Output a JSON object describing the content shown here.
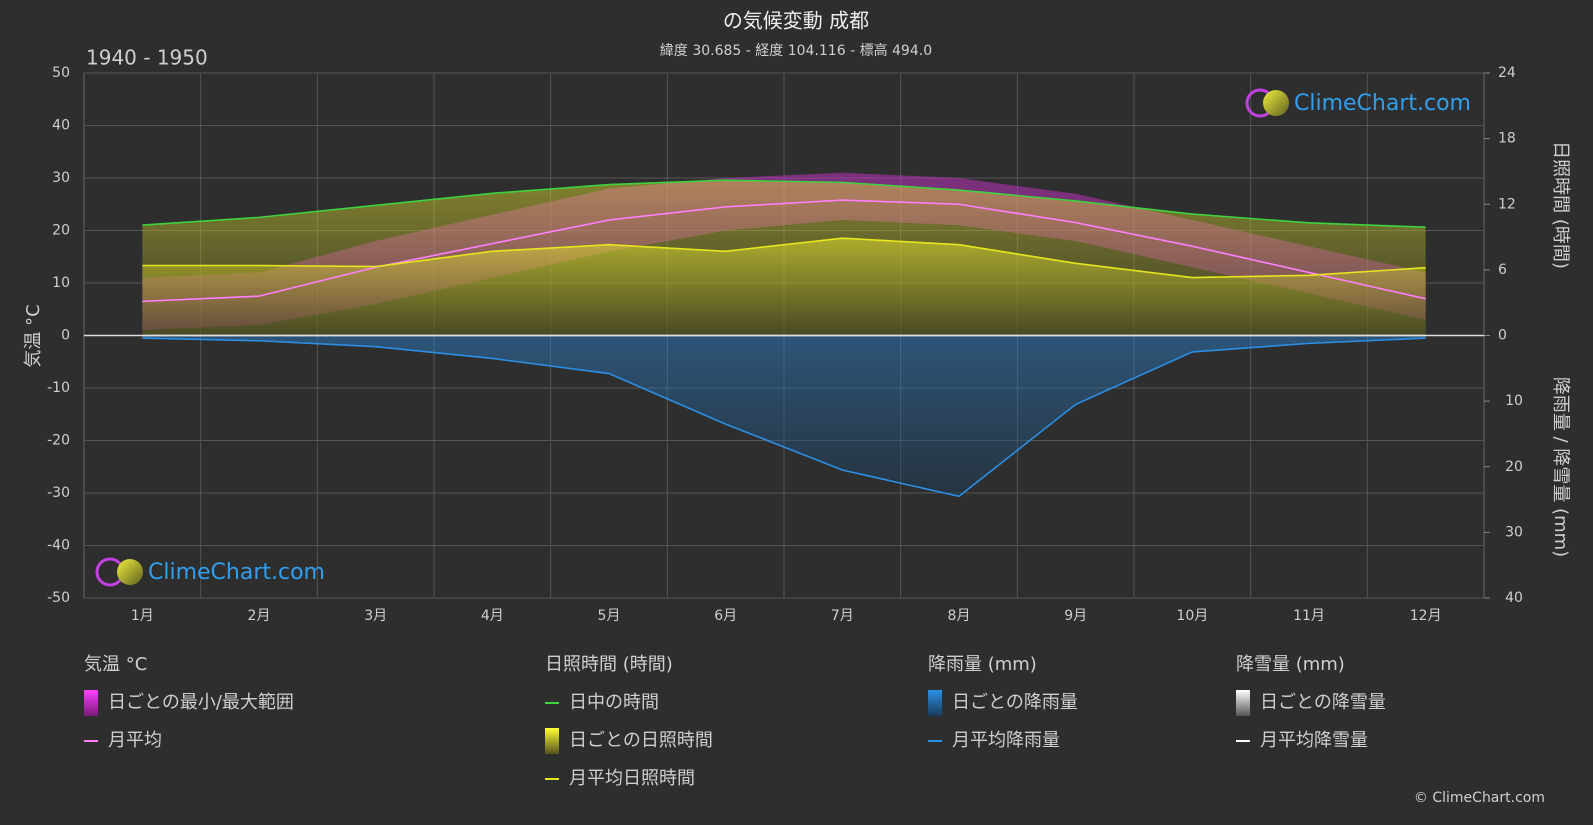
{
  "chart_data": {
    "type": "climate",
    "title": "の気候変動 成都",
    "subtitle": "緯度 30.685 - 経度 104.116 - 標高 494.0",
    "period": "1940 - 1950",
    "watermark": "ClimeChart.com",
    "copyright": "© ClimeChart.com",
    "ylabel": "気温 °C",
    "y2label": "日照時間 (時間)",
    "y3label": "降雨量 / 降雪量 (mm)",
    "categories": [
      "1月",
      "2月",
      "3月",
      "4月",
      "5月",
      "6月",
      "7月",
      "8月",
      "9月",
      "10月",
      "11月",
      "12月"
    ],
    "ylim": [
      -50,
      50
    ],
    "yticks": [
      -50,
      -40,
      -30,
      -20,
      -10,
      0,
      10,
      20,
      30,
      40,
      50
    ],
    "y2lim": [
      0,
      24
    ],
    "y2ticks": [
      0,
      6,
      12,
      18,
      24
    ],
    "y3lim": [
      0,
      40
    ],
    "y3ticks": [
      0,
      10,
      20,
      30,
      40
    ],
    "grid": true,
    "legend_groups": [
      "気温 °C",
      "日照時間 (時間)",
      "降雨量 (mm)",
      "降雪量 (mm)"
    ],
    "series": [
      {
        "name": "日ごとの最小/最大範囲",
        "color": "#d633d6",
        "kind": "band",
        "axis": "y",
        "low": [
          1,
          2,
          6,
          11,
          16,
          20,
          22,
          21,
          18,
          13,
          8,
          3
        ],
        "high": [
          11,
          12,
          18,
          23,
          28,
          30,
          31,
          30,
          27,
          22,
          17,
          12
        ]
      },
      {
        "name": "月平均",
        "color": "#ff7fff",
        "kind": "line",
        "axis": "y",
        "values": [
          6.5,
          7.5,
          13,
          17.5,
          22,
          24.5,
          25.8,
          25,
          21.5,
          17,
          12,
          7
        ]
      },
      {
        "name": "日中の時間",
        "color": "#3fd23f",
        "kind": "line",
        "axis": "y2",
        "values": [
          10.1,
          10.8,
          11.9,
          13,
          13.8,
          14.2,
          14,
          13.3,
          12.3,
          11.1,
          10.3,
          9.9
        ]
      },
      {
        "name": "日ごとの日照時間",
        "color": "#a6a632",
        "kind": "daily"
      },
      {
        "name": "月平均日照時間",
        "color": "#e6e61e",
        "kind": "line",
        "axis": "y2",
        "values": [
          6.4,
          6.4,
          6.3,
          7.7,
          8.3,
          7.7,
          8.9,
          8.3,
          6.6,
          5.3,
          5.5,
          6.2
        ]
      },
      {
        "name": "日ごとの降雨量",
        "color": "#1f6fae",
        "kind": "daily"
      },
      {
        "name": "月平均降雨量",
        "color": "#2b8fe6",
        "kind": "line",
        "axis": "y3",
        "values": [
          0.4,
          0.8,
          1.7,
          3.5,
          5.8,
          13.5,
          20.5,
          24.5,
          10.5,
          2.5,
          1.2,
          0.4
        ]
      },
      {
        "name": "日ごとの降雪量",
        "color": "#dddddd",
        "kind": "daily"
      },
      {
        "name": "月平均降雪量",
        "color": "#ffffff",
        "kind": "line",
        "axis": "y3",
        "values": [
          0,
          0,
          0,
          0,
          0,
          0,
          0,
          0,
          0,
          0,
          0,
          0
        ]
      }
    ]
  }
}
